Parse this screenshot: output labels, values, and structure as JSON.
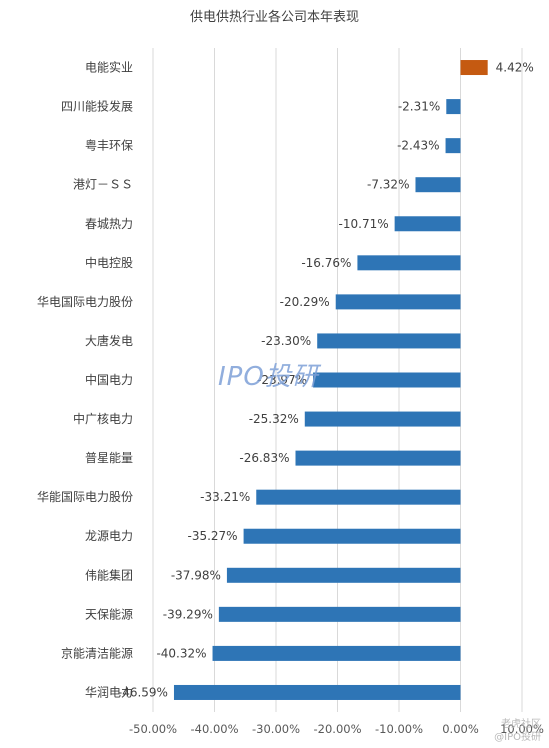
{
  "chart_data": {
    "type": "bar",
    "orientation": "horizontal",
    "title": "供电供热行业各公司本年表现",
    "categories": [
      "电能实业",
      "四川能投发展",
      "粤丰环保",
      "港灯－ＳＳ",
      "春城热力",
      "中电控股",
      "华电国际电力股份",
      "大唐发电",
      "中国电力",
      "中广核电力",
      "普星能量",
      "华能国际电力股份",
      "龙源电力",
      "伟能集团",
      "天保能源",
      "京能清洁能源",
      "华润电力"
    ],
    "values": [
      4.42,
      -2.31,
      -2.43,
      -7.32,
      -10.71,
      -16.76,
      -20.29,
      -23.3,
      -23.97,
      -25.32,
      -26.83,
      -33.21,
      -35.27,
      -37.98,
      -39.29,
      -40.32,
      -46.59
    ],
    "value_labels": [
      "4.42%",
      "-2.31%",
      "-2.43%",
      "-7.32%",
      "-10.71%",
      "-16.76%",
      "-20.29%",
      "-23.30%",
      "-23.97%",
      "-25.32%",
      "-26.83%",
      "-33.21%",
      "-35.27%",
      "-37.98%",
      "-39.29%",
      "-40.32%",
      "-46.59%"
    ],
    "xlim": [
      -50,
      10
    ],
    "x_ticks": [
      "-50.00%",
      "-40.00%",
      "-30.00%",
      "-20.00%",
      "-10.00%",
      "0.00%",
      "10.00%"
    ],
    "tick_values": [
      -50,
      -40,
      -30,
      -20,
      -10,
      0,
      10
    ],
    "grid": "vertical",
    "positive_color": "#c55a11",
    "negative_color": "#2e75b6"
  },
  "watermark": "IPO投研",
  "corner_mark": {
    "line1": "老虎社区",
    "line2": "@IPO投研"
  }
}
